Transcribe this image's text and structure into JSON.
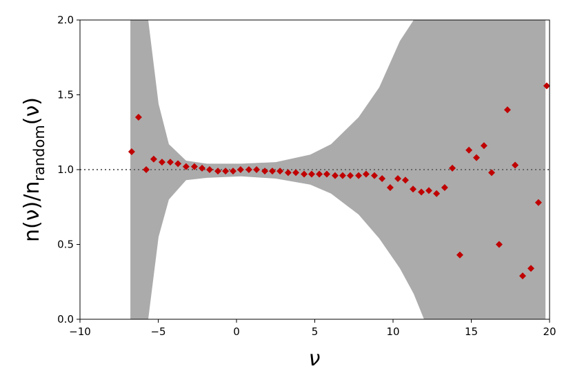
{
  "chart_data": {
    "type": "scatter",
    "xlabel": "ν",
    "ylabel": [
      "n(ν)/n",
      "random",
      "(ν)"
    ],
    "xlim": [
      -10,
      20
    ],
    "ylim": [
      0,
      2
    ],
    "xticks": [
      {
        "value": -10,
        "label": "−10"
      },
      {
        "value": -5,
        "label": "−5"
      },
      0,
      5,
      10,
      15,
      20
    ],
    "yticks": [
      {
        "value": 0,
        "label": "0.0"
      },
      {
        "value": 0.5,
        "label": "0.5"
      },
      {
        "value": 1,
        "label": "1.0"
      },
      {
        "value": 1.5,
        "label": "1.5"
      },
      {
        "value": 2,
        "label": "2.0"
      }
    ],
    "reference_line": 1,
    "band": {
      "color": "#ababab",
      "x": [
        -6.78,
        -5.64,
        -4.98,
        -4.32,
        -3.22,
        -1.89,
        0.3,
        2.51,
        4.71,
        6.04,
        7.8,
        9.12,
        10.44,
        11.32,
        11.98,
        19.74
      ],
      "upper": [
        2,
        2,
        1.44,
        1.17,
        1.06,
        1.04,
        1.04,
        1.05,
        1.1,
        1.17,
        1.35,
        1.55,
        1.86,
        2,
        2,
        2
      ],
      "lower": [
        0,
        0,
        0.55,
        0.8,
        0.93,
        0.945,
        0.955,
        0.94,
        0.9,
        0.84,
        0.7,
        0.54,
        0.34,
        0.17,
        0,
        0
      ]
    },
    "series": [
      {
        "color": "#c00000",
        "x": [
          -6.7,
          -6.26,
          -5.77,
          -5.29,
          -4.76,
          -4.23,
          -3.74,
          -3.22,
          -2.69,
          -2.2,
          -1.72,
          -1.19,
          -0.7,
          -0.22,
          0.26,
          0.79,
          1.28,
          1.81,
          2.29,
          2.78,
          3.3,
          3.79,
          4.32,
          4.8,
          5.29,
          5.77,
          6.3,
          6.78,
          7.27,
          7.8,
          8.28,
          8.81,
          9.3,
          9.82,
          10.31,
          10.79,
          11.28,
          11.81,
          12.29,
          12.78,
          13.3,
          13.79,
          14.27,
          14.85,
          15.33,
          15.81,
          16.3,
          16.78,
          17.31,
          17.8,
          18.28,
          18.81,
          19.29,
          19.82
        ],
        "values": [
          1.12,
          1.35,
          1.0,
          1.07,
          1.05,
          1.05,
          1.04,
          1.02,
          1.02,
          1.01,
          1.0,
          0.99,
          0.99,
          0.99,
          1.0,
          1.0,
          1.0,
          0.99,
          0.99,
          0.99,
          0.98,
          0.98,
          0.97,
          0.97,
          0.97,
          0.97,
          0.96,
          0.96,
          0.96,
          0.96,
          0.97,
          0.96,
          0.94,
          0.88,
          0.94,
          0.93,
          0.87,
          0.85,
          0.86,
          0.84,
          0.88,
          1.01,
          0.43,
          1.13,
          1.08,
          1.16,
          0.98,
          0.5,
          1.4,
          1.03,
          0.29,
          0.34,
          0.78,
          1.56
        ]
      }
    ]
  }
}
